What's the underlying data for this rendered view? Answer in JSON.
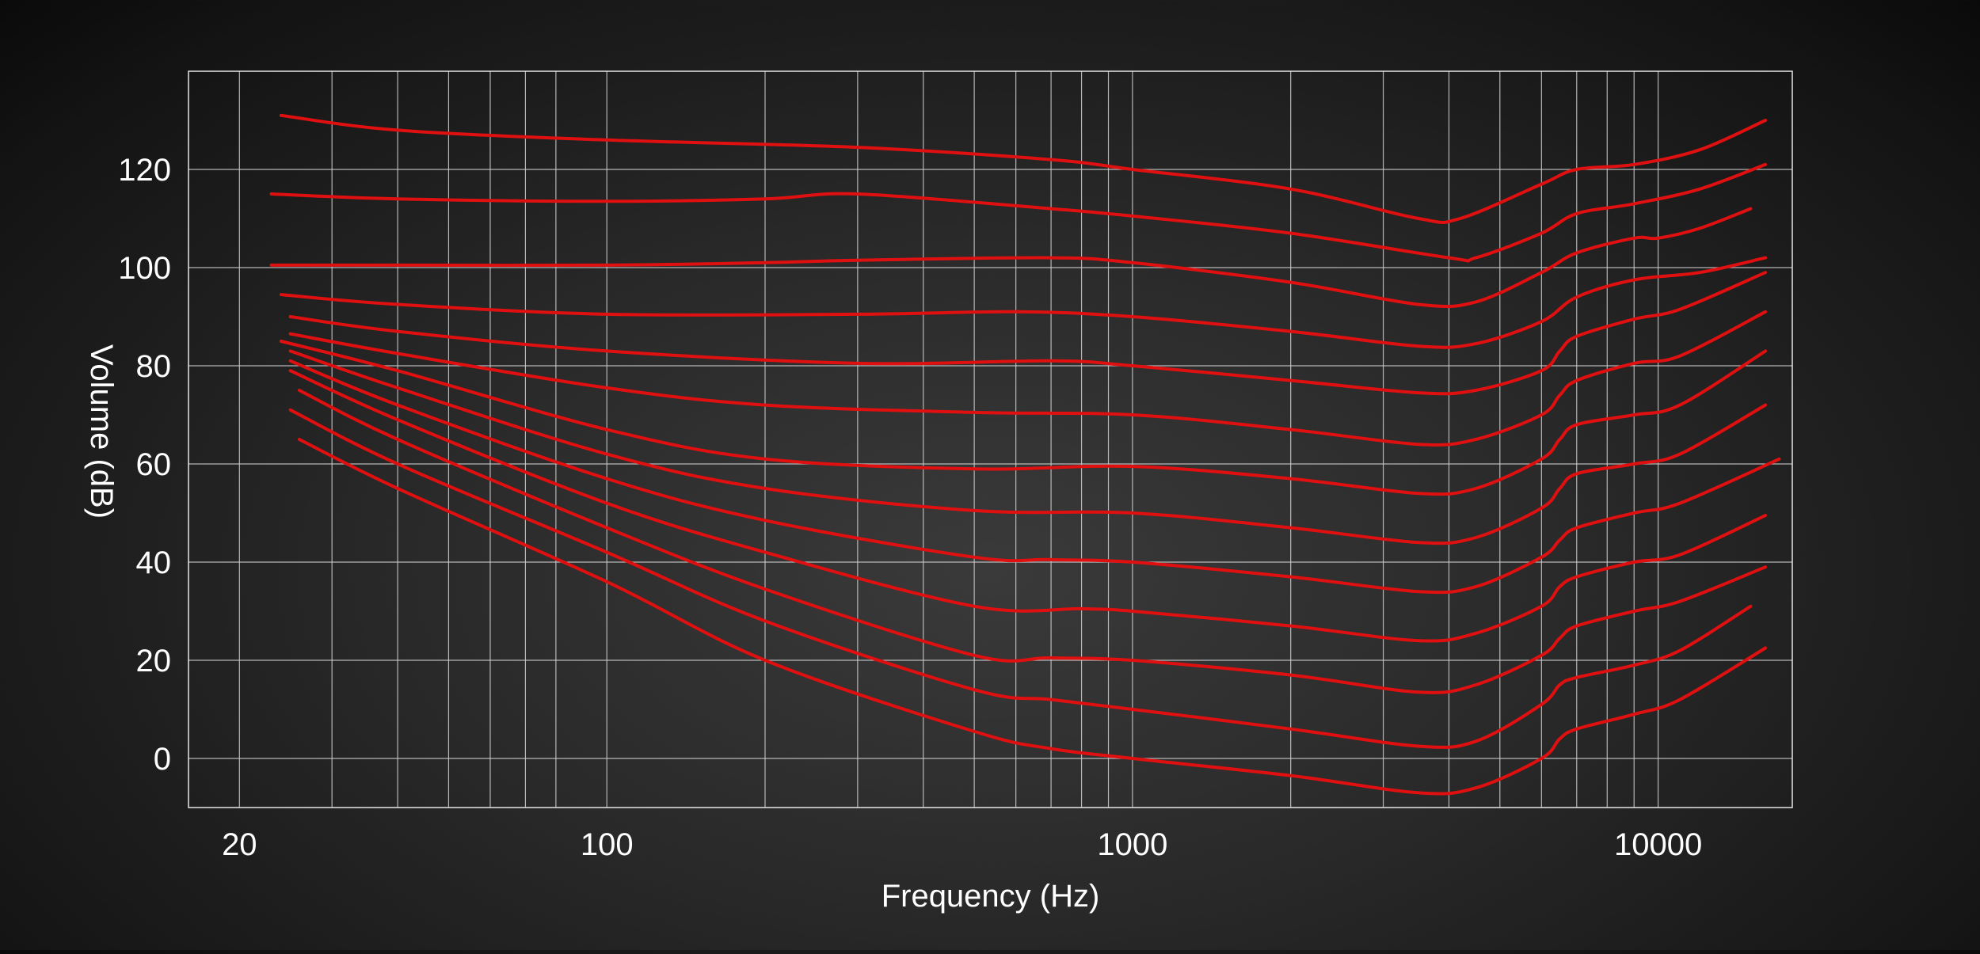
{
  "chart_data": {
    "type": "line",
    "title": "",
    "xlabel": "Frequency (Hz)",
    "ylabel": "Volume (dB)",
    "x_scale": "log",
    "xlim": [
      16,
      18000
    ],
    "ylim": [
      -10,
      140
    ],
    "x_ticks": [
      20,
      100,
      1000,
      10000
    ],
    "x_tick_labels": [
      "20",
      "100",
      "1000",
      "10000"
    ],
    "x_grid": [
      20,
      30,
      40,
      50,
      60,
      70,
      80,
      100,
      200,
      300,
      400,
      500,
      600,
      700,
      800,
      900,
      1000,
      2000,
      3000,
      4000,
      5000,
      6000,
      7000,
      8000,
      9000,
      10000
    ],
    "y_ticks": [
      0,
      20,
      40,
      60,
      80,
      100,
      120
    ],
    "y_tick_labels": [
      "0",
      "20",
      "40",
      "60",
      "80",
      "100",
      "120"
    ],
    "grid": true,
    "line_color": "#e01010",
    "grid_color": "#d0d0d0",
    "series": [
      {
        "x": [
          24,
          40,
          100,
          300,
          700,
          1000,
          2000,
          3500,
          4200,
          6000,
          7000,
          9000,
          12000,
          16000
        ],
        "y": [
          131,
          128,
          126,
          124.5,
          122,
          120,
          116,
          110,
          110,
          117,
          120,
          121,
          124,
          130
        ]
      },
      {
        "x": [
          23,
          40,
          100,
          200,
          300,
          700,
          1000,
          2000,
          4000,
          4500,
          6000,
          7000,
          9000,
          12000,
          16000
        ],
        "y": [
          115,
          114,
          113.5,
          114,
          115,
          112,
          110.5,
          107,
          102,
          102,
          107,
          111,
          113,
          116,
          121
        ]
      },
      {
        "x": [
          23,
          40,
          100,
          200,
          300,
          700,
          1000,
          2000,
          3500,
          4500,
          6000,
          7000,
          9000,
          10000,
          12000,
          15000
        ],
        "y": [
          100.5,
          100.5,
          100.5,
          101,
          101.5,
          102,
          101,
          97,
          92.5,
          93,
          99,
          103,
          106,
          106,
          108,
          112
        ]
      },
      {
        "x": [
          24,
          40,
          100,
          300,
          600,
          1000,
          2000,
          3500,
          4500,
          6000,
          7000,
          9000,
          12000,
          16000
        ],
        "y": [
          94.5,
          92.5,
          90.5,
          90.5,
          91,
          90,
          87,
          84,
          84.5,
          89,
          94,
          97.5,
          99,
          102
        ]
      },
      {
        "x": [
          25,
          40,
          100,
          300,
          700,
          1000,
          2000,
          3500,
          4500,
          6000,
          6500,
          7000,
          9000,
          11000,
          16000
        ],
        "y": [
          90,
          87,
          83,
          80.5,
          81,
          80,
          77,
          74.5,
          75,
          79,
          83,
          86,
          89.5,
          91.5,
          99
        ]
      },
      {
        "x": [
          25,
          40,
          100,
          200,
          500,
          1000,
          2000,
          3500,
          4500,
          6000,
          6500,
          7000,
          9000,
          11000,
          16000
        ],
        "y": [
          86.5,
          82.5,
          75.5,
          72,
          70.5,
          70,
          67,
          64,
          65,
          70,
          74,
          77,
          80.5,
          82,
          91
        ]
      },
      {
        "x": [
          24,
          40,
          100,
          200,
          500,
          1000,
          2000,
          3500,
          4500,
          6000,
          6500,
          7000,
          9000,
          11000,
          16000
        ],
        "y": [
          85,
          79,
          67,
          61,
          59,
          59.5,
          57,
          54,
          55,
          61,
          65,
          68,
          70,
          72,
          83
        ]
      },
      {
        "x": [
          25,
          40,
          100,
          200,
          500,
          1000,
          2000,
          3500,
          4500,
          6000,
          6500,
          7000,
          9000,
          11000,
          16000
        ],
        "y": [
          83,
          75.5,
          62,
          55,
          50.5,
          50,
          47,
          44,
          45,
          51,
          55,
          58,
          60,
          62,
          72
        ]
      },
      {
        "x": [
          25,
          40,
          100,
          200,
          500,
          700,
          1000,
          2000,
          3500,
          4500,
          6000,
          6500,
          7000,
          9000,
          11000,
          17000
        ],
        "y": [
          81,
          72,
          57,
          48.5,
          41,
          40.5,
          40,
          37,
          34,
          35,
          41,
          44.5,
          47,
          50,
          52,
          61
        ]
      },
      {
        "x": [
          25,
          40,
          100,
          200,
          500,
          800,
          1000,
          2000,
          3500,
          4500,
          6000,
          6500,
          7000,
          9000,
          11000,
          16000
        ],
        "y": [
          79,
          69,
          52,
          42,
          31,
          30.5,
          30,
          27,
          24,
          25.5,
          31,
          35,
          37,
          40,
          41.5,
          49.5
        ]
      },
      {
        "x": [
          26,
          40,
          100,
          200,
          500,
          700,
          1000,
          2000,
          3500,
          4500,
          6000,
          6500,
          7000,
          9000,
          11000,
          16000
        ],
        "y": [
          75,
          65,
          47,
          34.5,
          21,
          20.5,
          20,
          17,
          13.5,
          15,
          21,
          24.5,
          27,
          30,
          32,
          39
        ]
      },
      {
        "x": [
          25,
          40,
          100,
          200,
          500,
          700,
          1000,
          2000,
          3500,
          4500,
          6000,
          6500,
          7000,
          9000,
          11000,
          15000
        ],
        "y": [
          71,
          60,
          42,
          28,
          14,
          12,
          10,
          6,
          2.5,
          3.5,
          11,
          15,
          16.5,
          19,
          22,
          31
        ]
      },
      {
        "x": [
          26,
          40,
          100,
          200,
          500,
          700,
          1000,
          2000,
          3500,
          4500,
          6000,
          6500,
          7000,
          9000,
          11000,
          16000
        ],
        "y": [
          65,
          55,
          36,
          20,
          5.5,
          2,
          0,
          -3.5,
          -7,
          -6,
          0,
          4,
          6,
          9,
          12,
          22.5
        ]
      }
    ]
  }
}
